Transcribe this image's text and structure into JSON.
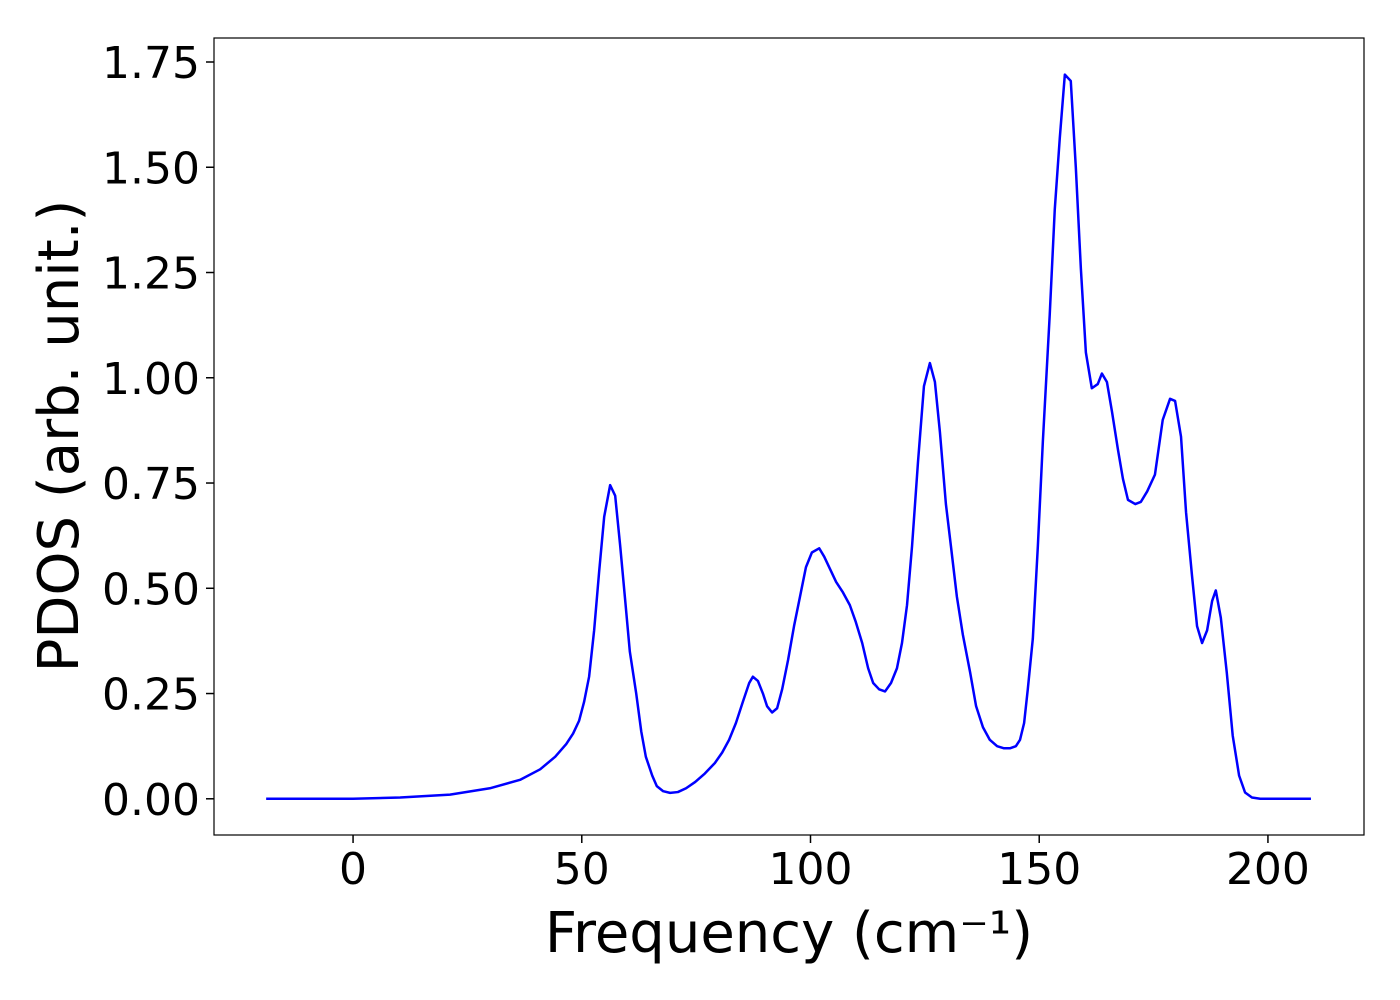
{
  "chart_data": {
    "type": "line",
    "xlabel": "Frequency (cm⁻¹)",
    "ylabel": "PDOS (arb. unit.)",
    "x": [
      -19.0,
      0,
      10.3,
      21.2,
      29.9,
      36.5,
      40.9,
      44.2,
      46.6,
      48.1,
      49.4,
      50.5,
      51.6,
      52.7,
      53.8,
      54.9,
      56.2,
      57.3,
      58.4,
      59.5,
      60.5,
      61.9,
      63.0,
      64.0,
      65.4,
      66.4,
      67.8,
      69.3,
      71.0,
      72.8,
      74.8,
      76.9,
      79.1,
      80.7,
      82.2,
      83.7,
      85.2,
      86.6,
      87.4,
      88.5,
      89.6,
      90.5,
      91.6,
      92.7,
      93.8,
      95.1,
      96.4,
      97.7,
      99.0,
      100.3,
      101.9,
      103.0,
      104.3,
      105.6,
      107.1,
      108.6,
      109.9,
      111.3,
      112.6,
      113.7,
      115.0,
      116.3,
      117.6,
      118.9,
      120.0,
      121.1,
      122.2,
      123.5,
      124.8,
      126.1,
      127.2,
      128.3,
      129.6,
      130.7,
      132.0,
      133.3,
      134.9,
      136.2,
      137.7,
      139.2,
      140.8,
      142.3,
      143.6,
      144.9,
      145.8,
      146.7,
      147.5,
      148.6,
      149.7,
      150.8,
      152.3,
      153.4,
      154.5,
      155.6,
      156.9,
      158.0,
      159.1,
      160.2,
      161.5,
      162.8,
      163.7,
      164.8,
      165.9,
      167.2,
      168.3,
      169.4,
      171.0,
      172.2,
      173.6,
      175.3,
      177.0,
      178.6,
      179.7,
      181.0,
      182.1,
      183.4,
      184.5,
      185.6,
      186.7,
      187.8,
      188.6,
      189.7,
      191.0,
      192.3,
      193.7,
      195.0,
      196.5,
      198.3,
      209.4
    ],
    "values": [
      0,
      0,
      0.003,
      0.01,
      0.025,
      0.045,
      0.07,
      0.1,
      0.13,
      0.155,
      0.185,
      0.23,
      0.29,
      0.4,
      0.54,
      0.67,
      0.745,
      0.72,
      0.6,
      0.47,
      0.35,
      0.25,
      0.16,
      0.1,
      0.055,
      0.03,
      0.018,
      0.014,
      0.016,
      0.025,
      0.04,
      0.06,
      0.085,
      0.11,
      0.14,
      0.18,
      0.23,
      0.275,
      0.29,
      0.28,
      0.25,
      0.22,
      0.205,
      0.215,
      0.26,
      0.33,
      0.41,
      0.48,
      0.55,
      0.585,
      0.595,
      0.575,
      0.545,
      0.515,
      0.49,
      0.46,
      0.42,
      0.37,
      0.31,
      0.275,
      0.26,
      0.255,
      0.275,
      0.31,
      0.37,
      0.46,
      0.6,
      0.8,
      0.98,
      1.035,
      0.99,
      0.87,
      0.7,
      0.6,
      0.48,
      0.39,
      0.3,
      0.22,
      0.17,
      0.14,
      0.125,
      0.12,
      0.12,
      0.125,
      0.14,
      0.18,
      0.26,
      0.38,
      0.6,
      0.85,
      1.15,
      1.4,
      1.57,
      1.72,
      1.705,
      1.5,
      1.26,
      1.06,
      0.975,
      0.985,
      1.01,
      0.99,
      0.92,
      0.83,
      0.76,
      0.71,
      0.7,
      0.705,
      0.73,
      0.77,
      0.9,
      0.95,
      0.945,
      0.86,
      0.68,
      0.53,
      0.41,
      0.37,
      0.4,
      0.47,
      0.495,
      0.43,
      0.3,
      0.15,
      0.055,
      0.015,
      0.003,
      0,
      0
    ],
    "color": "#0000ff",
    "xlim": [
      -30.4,
      221.0
    ],
    "ylim": [
      -0.086,
      1.807
    ],
    "xticks": [
      0,
      50,
      100,
      150,
      200
    ],
    "yticks": [
      {
        "value": 0,
        "label": "0.00"
      },
      {
        "value": 0.25,
        "label": "0.25"
      },
      {
        "value": 0.5,
        "label": "0.50"
      },
      {
        "value": 0.75,
        "label": "0.75"
      },
      {
        "value": 1,
        "label": "1.00"
      },
      {
        "value": 1.25,
        "label": "1.25"
      },
      {
        "value": 1.5,
        "label": "1.50"
      },
      {
        "value": 1.75,
        "label": "1.75"
      }
    ],
    "grid": false
  }
}
